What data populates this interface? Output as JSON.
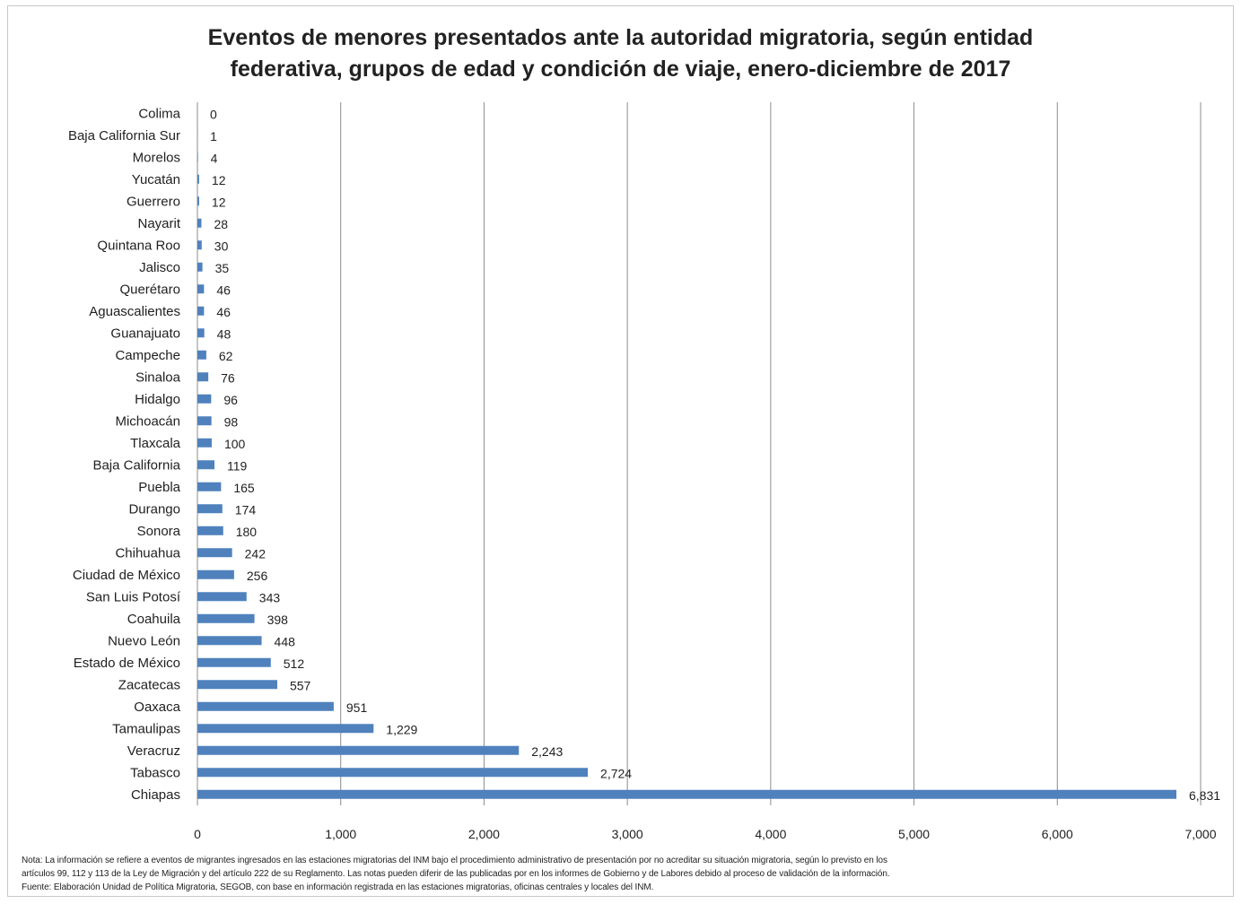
{
  "chart_data": {
    "type": "bar",
    "orientation": "horizontal",
    "title_line1": "Eventos de menores presentados ante la autoridad  migratoria, según entidad",
    "title_line2": "federativa, grupos de edad y condición de viaje, enero-diciembre de 2017",
    "categories": [
      "Colima",
      "Baja California Sur",
      "Morelos",
      "Yucatán",
      "Guerrero",
      "Nayarit",
      "Quintana Roo",
      "Jalisco",
      "Querétaro",
      "Aguascalientes",
      "Guanajuato",
      "Campeche",
      "Sinaloa",
      "Hidalgo",
      "Michoacán",
      "Tlaxcala",
      "Baja California",
      "Puebla",
      "Durango",
      "Sonora",
      "Chihuahua",
      "Ciudad de México",
      "San Luis Potosí",
      "Coahuila",
      "Nuevo León",
      "Estado de México",
      "Zacatecas",
      "Oaxaca",
      "Tamaulipas",
      "Veracruz",
      "Tabasco",
      "Chiapas"
    ],
    "values": [
      0,
      1,
      4,
      12,
      12,
      28,
      30,
      35,
      46,
      46,
      48,
      62,
      76,
      96,
      98,
      100,
      119,
      165,
      174,
      180,
      242,
      256,
      343,
      398,
      448,
      512,
      557,
      951,
      1229,
      2243,
      2724,
      6831
    ],
    "value_labels": [
      "0",
      "1",
      "4",
      "12",
      "12",
      "28",
      "30",
      "35",
      "46",
      "46",
      "48",
      "62",
      "76",
      "96",
      "98",
      "100",
      "119",
      "165",
      "174",
      "180",
      "242",
      "256",
      "343",
      "398",
      "448",
      "512",
      "557",
      "951",
      "1,229",
      "2,243",
      "2,724",
      "6,831"
    ],
    "xlim": [
      0,
      7000
    ],
    "xticks": [
      0,
      1000,
      2000,
      3000,
      4000,
      5000,
      6000,
      7000
    ],
    "xtick_labels": [
      "0",
      "1,000",
      "2,000",
      "3,000",
      "4,000",
      "5,000",
      "6,000",
      "7,000"
    ],
    "grid": "vertical",
    "bar_color": "#4f81bd",
    "grid_color": "#8c8c8c"
  },
  "notes": {
    "line1": "Nota: La información se refiere a eventos de migrantes ingresados en las estaciones migratorias del INM bajo el procedimiento administrativo de presentación por no acreditar su situación migratoria, según lo previsto en los",
    "line2": "artículos 99, 112 y 113 de la Ley de Migración y del artículo 222 de su Reglamento.  Las notas pueden diferir de las publicadas por en los informes de Gobierno y de Labores debido al proceso de validación de la información.",
    "line3": "Fuente:  Elaboración Unidad de Política Migratoria, SEGOB, con base en información registrada en las estaciones migratorias, oficinas centrales y locales del INM."
  }
}
